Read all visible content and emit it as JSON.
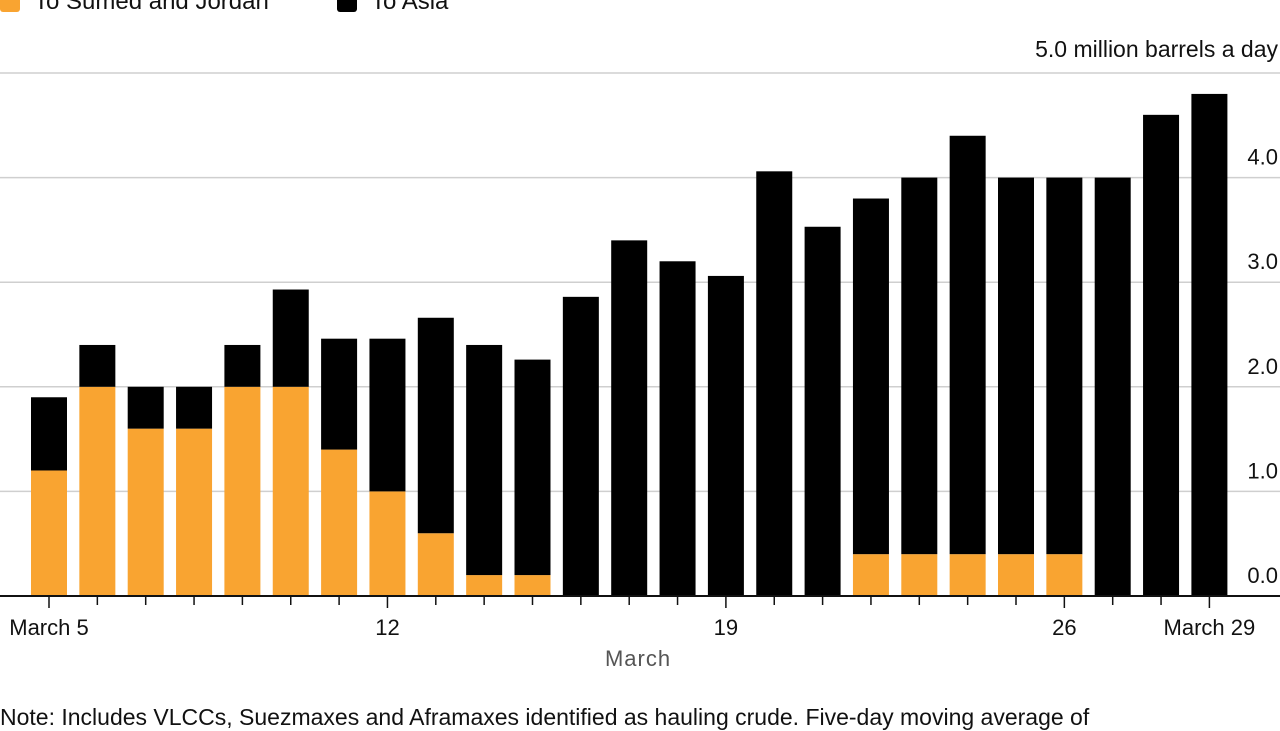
{
  "chart_data": {
    "type": "bar",
    "stacked": true,
    "unit_label": "5.0 million barrels a day",
    "xlabel": "March",
    "ylabel": "",
    "ylim": [
      0,
      5
    ],
    "y_ticks": [
      "0.0",
      "1.0",
      "2.0",
      "3.0",
      "4.0"
    ],
    "x_tick_labels": [
      {
        "index": 0,
        "label": "March 5"
      },
      {
        "index": 7,
        "label": "12"
      },
      {
        "index": 14,
        "label": "19"
      },
      {
        "index": 21,
        "label": "26"
      },
      {
        "index": 24,
        "label": "March 29"
      }
    ],
    "categories": [
      "March 5",
      "March 6",
      "March 7",
      "March 8",
      "March 9",
      "March 10",
      "March 11",
      "March 12",
      "March 13",
      "March 14",
      "March 15",
      "March 16",
      "March 17",
      "March 18",
      "March 19",
      "March 20",
      "March 21",
      "March 22",
      "March 23",
      "March 24",
      "March 25",
      "March 26",
      "March 27",
      "March 28",
      "March 29"
    ],
    "series": [
      {
        "name": "To Sumed and Jordan",
        "color": "#F9A431",
        "values": [
          1.2,
          2.0,
          1.6,
          1.6,
          2.0,
          2.0,
          1.4,
          1.0,
          0.6,
          0.2,
          0.2,
          0,
          0,
          0,
          0,
          0,
          0,
          0.4,
          0.4,
          0.4,
          0.4,
          0.4,
          0,
          0,
          0
        ]
      },
      {
        "name": "To Asia",
        "color": "#000000",
        "values": [
          0.7,
          0.4,
          0.4,
          0.4,
          0.4,
          0.93,
          1.06,
          1.46,
          2.06,
          2.2,
          2.06,
          2.86,
          3.4,
          3.2,
          3.06,
          4.06,
          3.53,
          3.4,
          3.6,
          4.0,
          3.6,
          3.6,
          4.0,
          4.6,
          4.8
        ]
      }
    ],
    "legend_position": "top-left",
    "grid": true,
    "note": "Note: Includes VLCCs, Suezmaxes and Aframaxes identified as hauling crude. Five-day moving average of"
  }
}
